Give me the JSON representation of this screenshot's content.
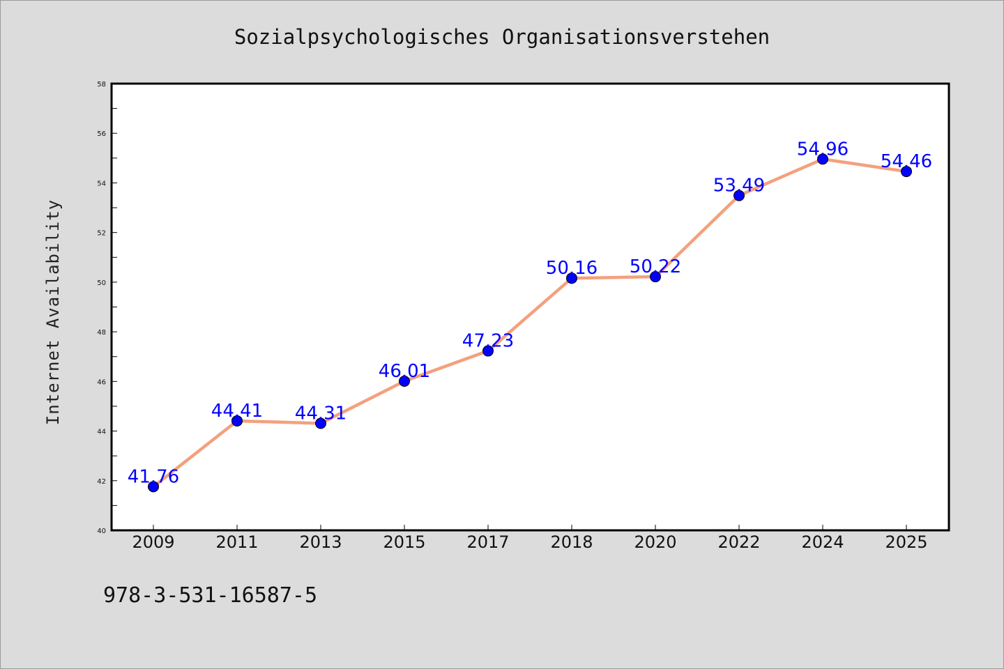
{
  "chart_data": {
    "type": "line",
    "title": "Sozialpsychologisches Organisationsverstehen",
    "xlabel": "",
    "ylabel": "Internet Availability",
    "categories": [
      "2009",
      "2011",
      "2013",
      "2015",
      "2017",
      "2018",
      "2020",
      "2022",
      "2024",
      "2025"
    ],
    "values": [
      41.76,
      44.41,
      44.31,
      46.01,
      47.23,
      50.16,
      50.22,
      53.49,
      54.96,
      54.46
    ],
    "data_labels": [
      "41.76",
      "44.41",
      "44.31",
      "46.01",
      "47.23",
      "50.16",
      "50.22",
      "53.49",
      "54.96",
      "54.46"
    ],
    "ylim": [
      40,
      58
    ],
    "yticks": [
      "40",
      "42",
      "44",
      "46",
      "48",
      "50",
      "52",
      "54",
      "56",
      "58"
    ],
    "grid": false,
    "legend": "none",
    "colors": {
      "line": "#f4a07e",
      "marker": "#0000ff",
      "label": "#0000ff",
      "background": "#dcdcdc",
      "plot_bg": "#ffffff"
    }
  },
  "footer": {
    "isbn": "978-3-531-16587-5"
  }
}
